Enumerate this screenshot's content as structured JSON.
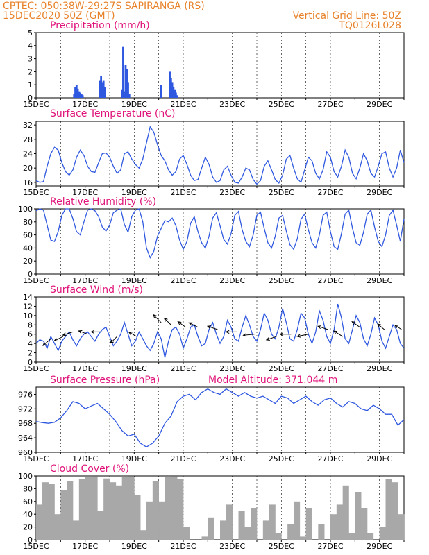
{
  "header": {
    "line1": "CPTEC:  050:38W-29:27S  SAPIRANGA (RS)",
    "line2": "15DEC2020 50Z (GMT)",
    "grid_note": "Vertical Grid Line: 50Z",
    "run_code": "TQ0126L028"
  },
  "days": [
    "15DEC",
    "17DEC",
    "19DEC",
    "21DEC",
    "23DEC",
    "25DEC",
    "27DEC",
    "29DEC"
  ],
  "colors": {
    "line": "#2f58e0",
    "bars": "#2f58e0",
    "cloud": "#a8a8a8",
    "title": "#e0147a",
    "header": "#e8822a"
  },
  "chart_data": [
    {
      "type": "bar",
      "title": "Precipitation (mm/h)",
      "x_unit": "day offset from 15DEC 00Z",
      "ylim": [
        0,
        5
      ],
      "yticks": [
        0,
        1,
        2,
        3,
        4,
        5
      ],
      "x": [
        1.55,
        1.6,
        1.65,
        1.7,
        1.75,
        1.8,
        1.85,
        1.9,
        2.6,
        2.65,
        2.7,
        2.75,
        2.8,
        3.5,
        3.55,
        3.6,
        3.65,
        3.7,
        3.75,
        3.8,
        5.1,
        5.45,
        5.5,
        5.55,
        5.6,
        5.65,
        5.7,
        5.75
      ],
      "values": [
        0.3,
        0.8,
        1.0,
        0.7,
        0.5,
        0.4,
        0.3,
        0.2,
        1.3,
        1.7,
        1.2,
        1.3,
        0.8,
        0.6,
        3.9,
        0.5,
        2.5,
        2.2,
        1.2,
        0.3,
        1.0,
        2.0,
        1.5,
        1.2,
        0.8,
        0.6,
        0.4,
        0.2
      ]
    },
    {
      "type": "line",
      "title": "Surface Temperature (nC)",
      "ylim": [
        15,
        33
      ],
      "yticks": [
        16,
        20,
        24,
        28,
        32
      ],
      "x": [
        0,
        0.15,
        0.3,
        0.45,
        0.6,
        0.75,
        0.9,
        1.05,
        1.2,
        1.35,
        1.5,
        1.65,
        1.8,
        1.95,
        2.1,
        2.25,
        2.4,
        2.55,
        2.7,
        2.85,
        3.0,
        3.15,
        3.3,
        3.45,
        3.6,
        3.75,
        3.9,
        4.05,
        4.2,
        4.35,
        4.5,
        4.65,
        4.8,
        4.95,
        5.1,
        5.25,
        5.4,
        5.55,
        5.7,
        5.85,
        6.0,
        6.15,
        6.3,
        6.45,
        6.6,
        6.75,
        6.9,
        7.05,
        7.2,
        7.35,
        7.5,
        7.65,
        7.8,
        7.95,
        8.1,
        8.25,
        8.4,
        8.55,
        8.7,
        8.85,
        9.0,
        9.15,
        9.3,
        9.45,
        9.6,
        9.75,
        9.9,
        10.05,
        10.2,
        10.35,
        10.5,
        10.65,
        10.8,
        10.95,
        11.1,
        11.25,
        11.4,
        11.55,
        11.7,
        11.85,
        12.0,
        12.15,
        12.3,
        12.45,
        12.6,
        12.75,
        12.9,
        13.05,
        13.2,
        13.35,
        13.5,
        13.65,
        13.8,
        13.95,
        14.1,
        14.25,
        14.4,
        14.55,
        14.7,
        14.85,
        15.0
      ],
      "values": [
        16.5,
        16.0,
        16.2,
        20.5,
        24.0,
        25.8,
        25.0,
        21.5,
        19.0,
        18.0,
        19.5,
        23.0,
        25.0,
        23.5,
        20.5,
        19.0,
        18.8,
        21.5,
        24.0,
        24.2,
        23.0,
        20.5,
        18.5,
        19.5,
        24.0,
        24.5,
        22.5,
        21.0,
        20.0,
        22.5,
        27.0,
        31.5,
        30.0,
        26.5,
        23.5,
        22.0,
        19.5,
        18.0,
        19.0,
        22.5,
        23.5,
        21.0,
        18.0,
        16.5,
        16.8,
        20.0,
        23.0,
        21.0,
        17.5,
        16.0,
        16.5,
        19.5,
        20.5,
        18.0,
        16.0,
        15.8,
        17.5,
        20.0,
        19.5,
        16.8,
        15.5,
        16.5,
        20.5,
        22.0,
        19.5,
        16.8,
        15.8,
        18.0,
        22.5,
        23.5,
        20.0,
        17.0,
        16.0,
        19.5,
        23.0,
        22.0,
        18.5,
        17.0,
        19.5,
        24.5,
        23.0,
        19.0,
        17.5,
        20.5,
        25.0,
        23.0,
        18.5,
        17.0,
        20.0,
        24.0,
        22.0,
        18.5,
        17.5,
        20.5,
        24.0,
        24.5,
        20.0,
        17.5,
        20.0,
        25.0,
        21.5
      ]
    },
    {
      "type": "line",
      "title": "Relative Humidity (%)",
      "ylim": [
        0,
        100
      ],
      "yticks": [
        0,
        20,
        40,
        60,
        80,
        100
      ],
      "x": [
        0,
        0.15,
        0.3,
        0.45,
        0.6,
        0.75,
        0.9,
        1.05,
        1.2,
        1.35,
        1.5,
        1.65,
        1.8,
        1.95,
        2.1,
        2.25,
        2.4,
        2.55,
        2.7,
        2.85,
        3.0,
        3.15,
        3.3,
        3.45,
        3.6,
        3.75,
        3.9,
        4.05,
        4.2,
        4.35,
        4.5,
        4.65,
        4.8,
        4.95,
        5.1,
        5.25,
        5.4,
        5.55,
        5.7,
        5.85,
        6.0,
        6.15,
        6.3,
        6.45,
        6.6,
        6.75,
        6.9,
        7.05,
        7.2,
        7.35,
        7.5,
        7.65,
        7.8,
        7.95,
        8.1,
        8.25,
        8.4,
        8.55,
        8.7,
        8.85,
        9.0,
        9.15,
        9.3,
        9.45,
        9.6,
        9.75,
        9.9,
        10.05,
        10.2,
        10.35,
        10.5,
        10.65,
        10.8,
        10.95,
        11.1,
        11.25,
        11.4,
        11.55,
        11.7,
        11.85,
        12.0,
        12.15,
        12.3,
        12.45,
        12.6,
        12.75,
        12.9,
        13.05,
        13.2,
        13.35,
        13.5,
        13.65,
        13.8,
        13.95,
        14.1,
        14.25,
        14.4,
        14.55,
        14.7,
        14.85,
        15.0
      ],
      "values": [
        97,
        100,
        98,
        75,
        52,
        50,
        65,
        90,
        100,
        100,
        85,
        65,
        60,
        80,
        98,
        100,
        97,
        88,
        72,
        66,
        75,
        94,
        98,
        100,
        76,
        64,
        88,
        98,
        100,
        80,
        40,
        25,
        35,
        58,
        70,
        82,
        80,
        86,
        74,
        52,
        38,
        50,
        78,
        88,
        65,
        48,
        40,
        58,
        86,
        94,
        74,
        53,
        46,
        62,
        90,
        96,
        68,
        50,
        42,
        60,
        90,
        95,
        70,
        48,
        40,
        58,
        86,
        90,
        66,
        45,
        38,
        54,
        84,
        92,
        68,
        48,
        40,
        60,
        90,
        95,
        65,
        42,
        38,
        62,
        92,
        98,
        70,
        48,
        44,
        64,
        92,
        98,
        72,
        50,
        42,
        60,
        90,
        98,
        75,
        50,
        85
      ]
    },
    {
      "type": "line",
      "title": "Surface Wind (m/s)",
      "ylim": [
        0,
        14
      ],
      "yticks": [
        0,
        2,
        4,
        6,
        8,
        10,
        12,
        14
      ],
      "x": [
        0,
        0.15,
        0.3,
        0.45,
        0.6,
        0.75,
        0.9,
        1.05,
        1.2,
        1.35,
        1.5,
        1.65,
        1.8,
        1.95,
        2.1,
        2.25,
        2.4,
        2.55,
        2.7,
        2.85,
        3.0,
        3.15,
        3.3,
        3.45,
        3.6,
        3.75,
        3.9,
        4.05,
        4.2,
        4.35,
        4.5,
        4.65,
        4.8,
        4.95,
        5.1,
        5.25,
        5.4,
        5.55,
        5.7,
        5.85,
        6.0,
        6.15,
        6.3,
        6.45,
        6.6,
        6.75,
        6.9,
        7.05,
        7.2,
        7.35,
        7.5,
        7.65,
        7.8,
        7.95,
        8.1,
        8.25,
        8.4,
        8.55,
        8.7,
        8.85,
        9.0,
        9.15,
        9.3,
        9.45,
        9.6,
        9.75,
        9.9,
        10.05,
        10.2,
        10.35,
        10.5,
        10.65,
        10.8,
        10.95,
        11.1,
        11.25,
        11.4,
        11.55,
        11.7,
        11.85,
        12.0,
        12.15,
        12.3,
        12.45,
        12.6,
        12.75,
        12.9,
        13.05,
        13.2,
        13.35,
        13.5,
        13.65,
        13.8,
        13.95,
        14.1,
        14.25,
        14.4,
        14.55,
        14.7,
        14.85,
        15.0
      ],
      "values": [
        4.0,
        4.8,
        4.5,
        3.0,
        5.5,
        4.0,
        2.5,
        4.5,
        5.5,
        6.5,
        4.8,
        3.5,
        5.0,
        6.0,
        6.5,
        5.5,
        4.5,
        6.0,
        7.0,
        7.5,
        5.5,
        3.5,
        4.5,
        6.0,
        8.5,
        6.0,
        3.5,
        4.5,
        6.5,
        5.0,
        3.5,
        2.5,
        4.0,
        6.5,
        5.0,
        1.0,
        4.5,
        7.0,
        7.5,
        6.0,
        3.0,
        5.0,
        7.5,
        8.0,
        5.5,
        3.5,
        4.0,
        7.0,
        8.5,
        6.0,
        4.0,
        5.5,
        9.0,
        7.5,
        5.0,
        4.5,
        7.5,
        10.0,
        8.0,
        5.5,
        4.5,
        7.0,
        10.5,
        9.0,
        6.0,
        5.0,
        7.5,
        11.5,
        8.5,
        5.0,
        4.5,
        7.0,
        10.5,
        9.5,
        6.0,
        4.0,
        6.5,
        11.0,
        9.0,
        5.5,
        4.0,
        7.0,
        12.5,
        9.5,
        5.0,
        4.0,
        7.0,
        10.0,
        8.5,
        5.0,
        3.5,
        6.0,
        9.5,
        8.0,
        4.5,
        3.0,
        5.5,
        8.0,
        7.0,
        4.0,
        3.0
      ],
      "arrows": [
        {
          "x": 0.6,
          "y": 5.0,
          "u": -0.7,
          "v": -0.6
        },
        {
          "x": 1.1,
          "y": 5.5,
          "u": -0.8,
          "v": -0.4
        },
        {
          "x": 1.5,
          "y": 6.5,
          "u": -0.9,
          "v": -0.3
        },
        {
          "x": 2.1,
          "y": 6.0,
          "u": -0.8,
          "v": 0.3
        },
        {
          "x": 2.7,
          "y": 6.5,
          "u": -1.0,
          "v": 0.0
        },
        {
          "x": 3.3,
          "y": 5.5,
          "u": -0.6,
          "v": -0.6
        },
        {
          "x": 4.1,
          "y": 5.5,
          "u": -0.7,
          "v": 0.4
        },
        {
          "x": 5.1,
          "y": 8.5,
          "u": -0.7,
          "v": 0.7
        },
        {
          "x": 5.5,
          "y": 8.0,
          "u": -0.6,
          "v": 0.6
        },
        {
          "x": 6.1,
          "y": 7.5,
          "u": -0.7,
          "v": 0.5
        },
        {
          "x": 6.6,
          "y": 7.5,
          "u": -0.8,
          "v": 0.4
        },
        {
          "x": 7.4,
          "y": 7.0,
          "u": -0.9,
          "v": 0.3
        },
        {
          "x": 8.2,
          "y": 6.5,
          "u": -1.0,
          "v": 0.0
        },
        {
          "x": 8.9,
          "y": 6.0,
          "u": -1.0,
          "v": -0.1
        },
        {
          "x": 9.8,
          "y": 5.5,
          "u": -0.9,
          "v": -0.3
        },
        {
          "x": 10.4,
          "y": 6.0,
          "u": -1.0,
          "v": 0.0
        },
        {
          "x": 11.1,
          "y": 6.0,
          "u": -1.0,
          "v": -0.2
        },
        {
          "x": 11.9,
          "y": 7.0,
          "u": -0.9,
          "v": 0.3
        },
        {
          "x": 12.5,
          "y": 5.5,
          "u": -0.8,
          "v": 0.5
        },
        {
          "x": 13.2,
          "y": 7.5,
          "u": -0.7,
          "v": 0.5
        },
        {
          "x": 14.2,
          "y": 7.0,
          "u": -0.6,
          "v": 0.5
        },
        {
          "x": 14.9,
          "y": 7.0,
          "u": -0.6,
          "v": 0.4
        }
      ]
    },
    {
      "type": "line",
      "title": "Surface Pressure (hPa)",
      "annotation": "Model Altitude: 371.044 m",
      "ylim": [
        960,
        978
      ],
      "yticks": [
        960,
        964,
        968,
        972,
        976
      ],
      "x": [
        0,
        0.25,
        0.5,
        0.75,
        1.0,
        1.25,
        1.5,
        1.75,
        2.0,
        2.25,
        2.5,
        2.75,
        3.0,
        3.25,
        3.5,
        3.75,
        4.0,
        4.25,
        4.5,
        4.75,
        5.0,
        5.25,
        5.5,
        5.75,
        6.0,
        6.25,
        6.5,
        6.75,
        7.0,
        7.25,
        7.5,
        7.75,
        8.0,
        8.25,
        8.5,
        8.75,
        9.0,
        9.25,
        9.5,
        9.75,
        10.0,
        10.25,
        10.5,
        10.75,
        11.0,
        11.25,
        11.5,
        11.75,
        12.0,
        12.25,
        12.5,
        12.75,
        13.0,
        13.25,
        13.5,
        13.75,
        14.0,
        14.25,
        14.5,
        14.75,
        15.0
      ],
      "values": [
        968.5,
        968.2,
        968.0,
        968.3,
        969.5,
        971.5,
        974.0,
        973.5,
        972.0,
        972.8,
        973.5,
        972.0,
        970.5,
        968.5,
        966.0,
        964.5,
        965.0,
        962.5,
        961.5,
        962.5,
        964.5,
        968.0,
        970.0,
        974.0,
        975.5,
        976.0,
        974.5,
        976.5,
        977.5,
        976.5,
        976.0,
        977.5,
        976.5,
        975.5,
        976.5,
        975.5,
        975.0,
        975.5,
        974.5,
        973.5,
        975.5,
        975.0,
        973.5,
        974.5,
        975.5,
        974.0,
        973.0,
        974.5,
        975.0,
        973.5,
        972.5,
        974.0,
        973.5,
        972.0,
        971.5,
        973.0,
        972.0,
        970.5,
        970.5,
        967.5,
        969.0
      ]
    },
    {
      "type": "area",
      "title": "Cloud Cover (%)",
      "ylim": [
        0,
        100
      ],
      "yticks": [
        0,
        20,
        40,
        60,
        80,
        100
      ],
      "x": [
        0,
        0.25,
        0.5,
        0.75,
        1.0,
        1.25,
        1.5,
        1.75,
        2.0,
        2.25,
        2.5,
        2.75,
        3.0,
        3.25,
        3.5,
        3.75,
        4.0,
        4.25,
        4.5,
        4.75,
        5.0,
        5.25,
        5.5,
        5.75,
        6.0,
        6.25,
        6.5,
        6.75,
        7.0,
        7.25,
        7.5,
        7.75,
        8.0,
        8.25,
        8.5,
        8.75,
        9.0,
        9.25,
        9.5,
        9.75,
        10.0,
        10.25,
        10.5,
        10.75,
        11.0,
        11.25,
        11.5,
        11.75,
        12.0,
        12.25,
        12.5,
        12.75,
        13.0,
        13.25,
        13.5,
        13.75,
        14.0,
        14.25,
        14.5,
        14.75,
        15.0
      ],
      "values": [
        55,
        90,
        88,
        40,
        78,
        92,
        30,
        95,
        98,
        99,
        45,
        96,
        90,
        85,
        98,
        99,
        70,
        15,
        60,
        92,
        60,
        98,
        99,
        95,
        20,
        0,
        0,
        5,
        35,
        0,
        30,
        55,
        0,
        45,
        20,
        50,
        0,
        30,
        55,
        10,
        0,
        25,
        60,
        5,
        50,
        0,
        25,
        0,
        40,
        55,
        85,
        10,
        75,
        50,
        10,
        0,
        20,
        95,
        90,
        40,
        10
      ]
    }
  ]
}
